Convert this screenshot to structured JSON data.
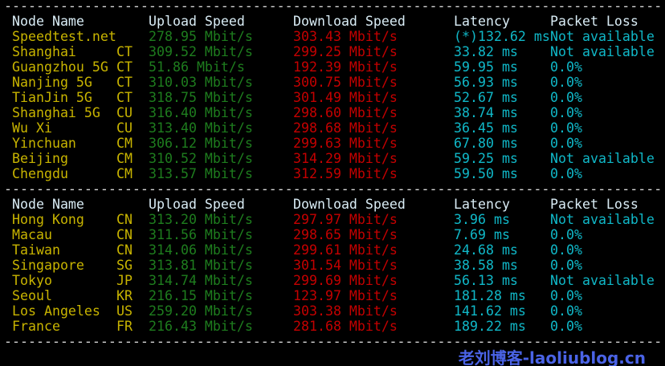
{
  "divider": "----------------------------------------------------------------------------------",
  "header": {
    "node": "Node Name",
    "upload": "Upload Speed",
    "download": "Download Speed",
    "latency": "Latency",
    "loss": "Packet Loss"
  },
  "sections": [
    {
      "rows": [
        {
          "node": "Speedtest.net",
          "isp": "",
          "upload": "278.95 Mbit/s",
          "download": "303.43 Mbit/s",
          "latency": "(*)132.62 ms",
          "loss": "Not available"
        },
        {
          "node": "Shanghai",
          "isp": "CT",
          "upload": "309.52 Mbit/s",
          "download": "299.25 Mbit/s",
          "latency": "33.82 ms",
          "loss": "Not available"
        },
        {
          "node": "Guangzhou 5G",
          "isp": "CT",
          "upload": "51.86 Mbit/s",
          "download": "192.39 Mbit/s",
          "latency": "59.95 ms",
          "loss": "0.0%"
        },
        {
          "node": "Nanjing 5G",
          "isp": "CT",
          "upload": "310.03 Mbit/s",
          "download": "300.75 Mbit/s",
          "latency": "56.93 ms",
          "loss": "0.0%"
        },
        {
          "node": "TianJin 5G",
          "isp": "CT",
          "upload": "318.75 Mbit/s",
          "download": "301.49 Mbit/s",
          "latency": "52.67 ms",
          "loss": "0.0%"
        },
        {
          "node": "Shanghai 5G",
          "isp": "CU",
          "upload": "316.40 Mbit/s",
          "download": "298.60 Mbit/s",
          "latency": "38.74 ms",
          "loss": "0.0%"
        },
        {
          "node": "Wu Xi",
          "isp": "CU",
          "upload": "313.40 Mbit/s",
          "download": "298.68 Mbit/s",
          "latency": "36.45 ms",
          "loss": "0.0%"
        },
        {
          "node": "Yinchuan",
          "isp": "CM",
          "upload": "306.12 Mbit/s",
          "download": "299.63 Mbit/s",
          "latency": "67.80 ms",
          "loss": "0.0%"
        },
        {
          "node": "Beijing",
          "isp": "CM",
          "upload": "310.52 Mbit/s",
          "download": "314.29 Mbit/s",
          "latency": "59.25 ms",
          "loss": "Not available"
        },
        {
          "node": "Chengdu",
          "isp": "CM",
          "upload": "313.57 Mbit/s",
          "download": "312.59 Mbit/s",
          "latency": "59.50 ms",
          "loss": "0.0%"
        }
      ]
    },
    {
      "rows": [
        {
          "node": "Hong Kong",
          "isp": "CN",
          "upload": "313.20 Mbit/s",
          "download": "297.97 Mbit/s",
          "latency": "3.96 ms",
          "loss": "Not available"
        },
        {
          "node": "Macau",
          "isp": "CN",
          "upload": "311.56 Mbit/s",
          "download": "298.65 Mbit/s",
          "latency": "7.69 ms",
          "loss": "0.0%"
        },
        {
          "node": "Taiwan",
          "isp": "CN",
          "upload": "314.06 Mbit/s",
          "download": "299.61 Mbit/s",
          "latency": "24.68 ms",
          "loss": "0.0%"
        },
        {
          "node": "Singapore",
          "isp": "SG",
          "upload": "313.81 Mbit/s",
          "download": "301.54 Mbit/s",
          "latency": "38.58 ms",
          "loss": "0.0%"
        },
        {
          "node": "Tokyo",
          "isp": "JP",
          "upload": "314.74 Mbit/s",
          "download": "299.69 Mbit/s",
          "latency": "56.13 ms",
          "loss": "Not available"
        },
        {
          "node": "Seoul",
          "isp": "KR",
          "upload": "216.15 Mbit/s",
          "download": "123.97 Mbit/s",
          "latency": "181.28 ms",
          "loss": "0.0%"
        },
        {
          "node": "Los Angeles",
          "isp": "US",
          "upload": "259.20 Mbit/s",
          "download": "303.38 Mbit/s",
          "latency": "141.62 ms",
          "loss": "0.0%"
        },
        {
          "node": "France",
          "isp": "FR",
          "upload": "216.43 Mbit/s",
          "download": "281.68 Mbit/s",
          "latency": "189.22 ms",
          "loss": "0.0%"
        }
      ]
    }
  ],
  "watermark": "老刘博客-laoliublog.cn",
  "colors": {
    "background": "#000000",
    "header": "#d9ecf5",
    "node": "#c8b400",
    "upload": "#1e7d1e",
    "download": "#c40000",
    "latency": "#10b8c8"
  }
}
